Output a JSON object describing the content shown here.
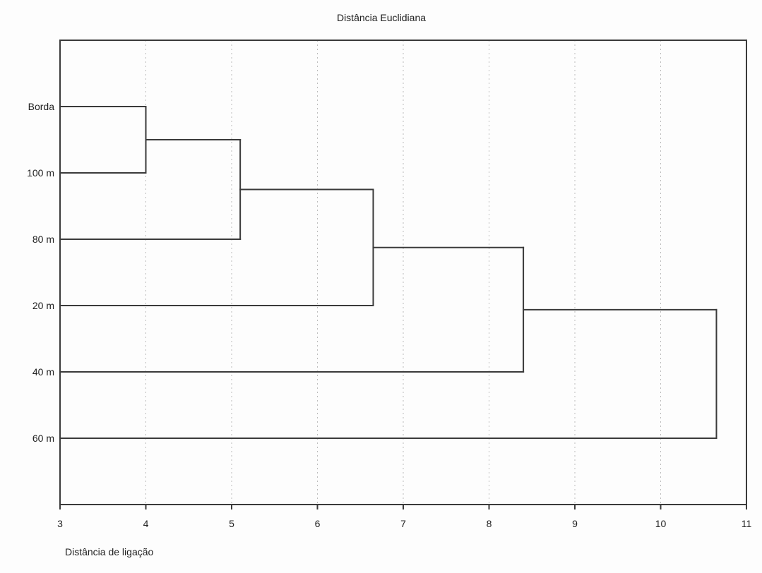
{
  "chart_data": {
    "type": "dendrogram",
    "orientation": "horizontal",
    "title": "Distância Euclidiana",
    "xlabel": "Distância de ligação",
    "ylabel": "",
    "leaves": [
      "Borda",
      "100 m",
      "80 m",
      "20 m",
      "40 m",
      "60 m"
    ],
    "xlim": [
      3,
      11
    ],
    "xticks": [
      3,
      4,
      5,
      6,
      7,
      8,
      9,
      10,
      11
    ],
    "grid": "vertical dotted gridlines at each x tick",
    "legend": "none",
    "linkage": [
      {
        "a": "leaf:0",
        "b": "leaf:1",
        "distance": 4.0,
        "note": "Borda + 100 m"
      },
      {
        "a": "link:0",
        "b": "leaf:2",
        "distance": 5.1,
        "note": "(Borda,100 m) + 80 m"
      },
      {
        "a": "link:1",
        "b": "leaf:3",
        "distance": 6.65,
        "note": "(Borda,100 m,80 m) + 20 m"
      },
      {
        "a": "link:2",
        "b": "leaf:4",
        "distance": 8.4,
        "note": "(Borda,100 m,80 m,20 m) + 40 m"
      },
      {
        "a": "link:3",
        "b": "leaf:5",
        "distance": 10.65,
        "note": "(Borda,100 m,80 m,20 m,40 m) + 60 m"
      }
    ],
    "colors": {
      "line": "#3a3a3a",
      "border": "#3a3a3a",
      "grid": "#bcbcbc",
      "text": "#222222",
      "plot_background": "#fdfdfd"
    }
  }
}
